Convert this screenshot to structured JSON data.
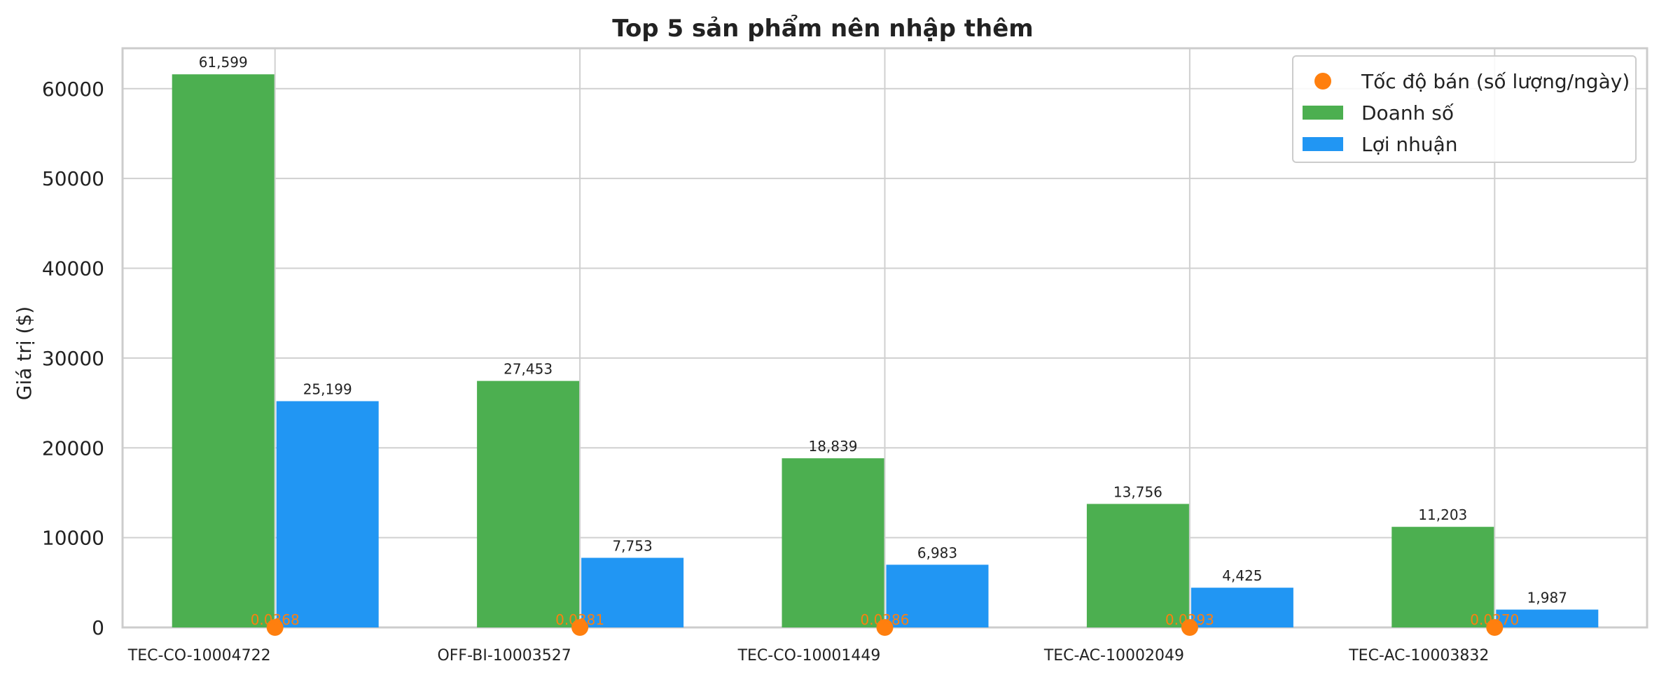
{
  "chart_data": {
    "type": "bar",
    "title": "Top 5 sản phẩm nên nhập thêm",
    "xlabel": "",
    "ylabel": "Giá trị ($)",
    "ylim": [
      0,
      64500
    ],
    "yticks": [
      0,
      10000,
      20000,
      30000,
      40000,
      50000,
      60000
    ],
    "ytick_labels": [
      "0",
      "10000",
      "20000",
      "30000",
      "40000",
      "50000",
      "60000"
    ],
    "grid": true,
    "legend_position": "top-right",
    "categories": [
      "TEC-CO-10004722",
      "OFF-BI-10003527",
      "TEC-CO-10001449",
      "TEC-AC-10002049",
      "TEC-AC-10003832"
    ],
    "series": [
      {
        "name": "Doanh số",
        "color": "#4caf50",
        "values": [
          61599,
          27453,
          18839,
          13756,
          11203
        ],
        "labels": [
          "61,599",
          "27,453",
          "18,839",
          "13,756",
          "11,203"
        ]
      },
      {
        "name": "Lợi nhuận",
        "color": "#2196f3",
        "values": [
          25199,
          7753,
          6983,
          4425,
          1987
        ],
        "labels": [
          "25,199",
          "7,753",
          "6,983",
          "4,425",
          "1,987"
        ]
      }
    ],
    "scatter_series": {
      "name": "Tốc độ bán (số lượng/ngày)",
      "color": "#ff7f0e",
      "values": [
        0.0368,
        0.0381,
        0.0286,
        0.0293,
        0.027
      ],
      "labels": [
        "0.0368",
        "0.0381",
        "0.0286",
        "0.0293",
        "0.0270"
      ]
    },
    "legend": [
      {
        "label": "Tốc độ bán (số lượng/ngày)",
        "marker": "circle",
        "color": "#ff7f0e"
      },
      {
        "label": "Doanh số",
        "marker": "rect",
        "color": "#4caf50"
      },
      {
        "label": "Lợi nhuận",
        "marker": "rect",
        "color": "#2196f3"
      }
    ]
  }
}
